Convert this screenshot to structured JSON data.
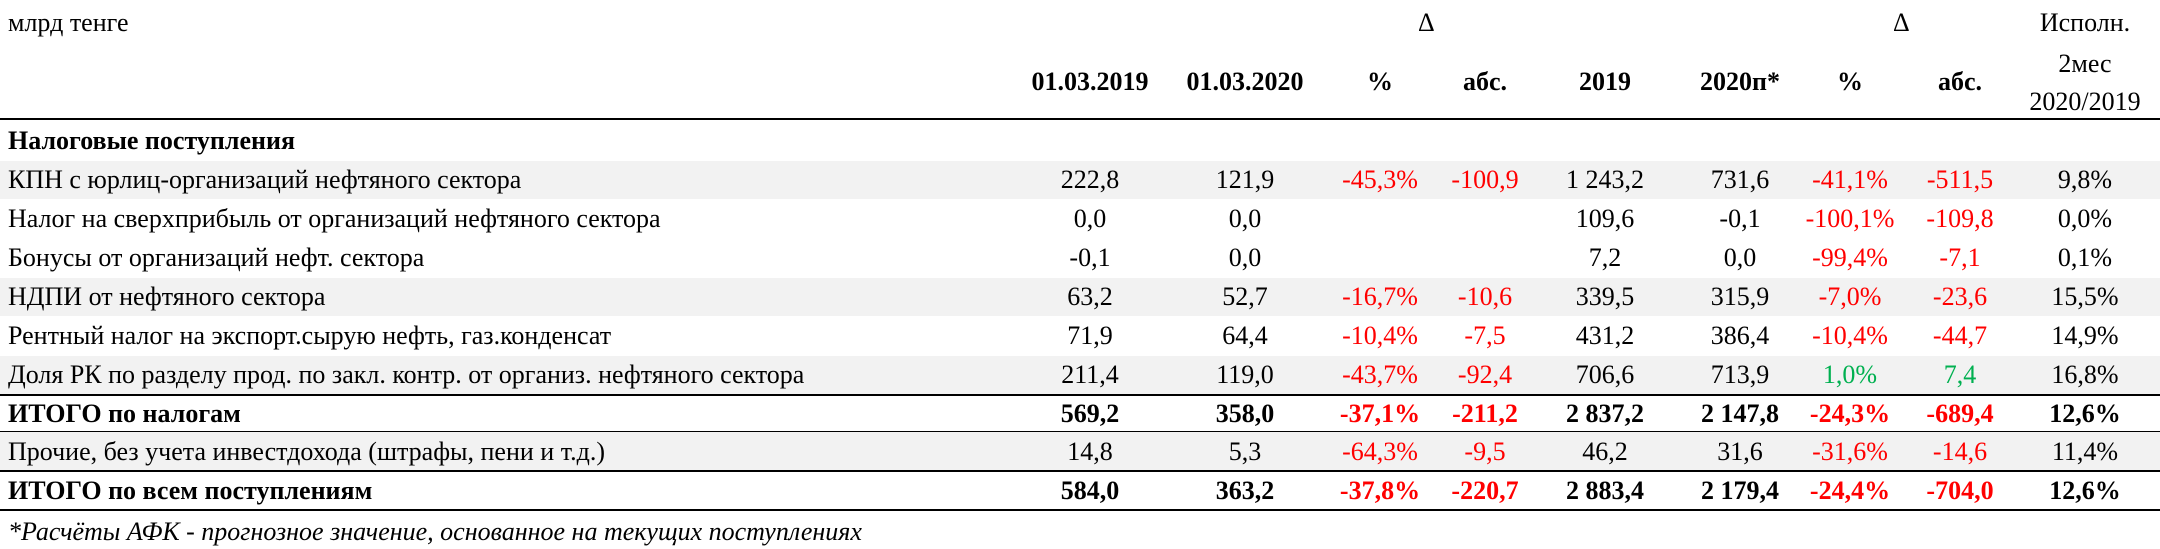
{
  "header": {
    "unit": "млрд тенге",
    "delta_symbol_1": "Δ",
    "delta_symbol_2": "Δ",
    "execution_line1": "Исполн.",
    "execution_line2": "2мес",
    "execution_line3": "2020/2019",
    "columns": [
      "01.03.2019",
      "01.03.2020",
      "%",
      "абс.",
      "2019",
      "2020п*",
      "%",
      "абс."
    ]
  },
  "section_title": "Налоговые поступления",
  "colors": {
    "negative": "#ff0000",
    "positive": "#00b050",
    "shade": "#f2f2f2"
  },
  "rows": [
    {
      "label": "КПН с юрлиц-организаций нефтяного сектора",
      "values": [
        "222,8",
        "121,9",
        "-45,3%",
        "-100,9",
        "1 243,2",
        "731,6",
        "-41,1%",
        "-511,5",
        "9,8%"
      ]
    },
    {
      "label": "Налог на сверхприбыль от организаций нефтяного сектора",
      "values": [
        "0,0",
        "0,0",
        "",
        "",
        "109,6",
        "-0,1",
        "-100,1%",
        "-109,8",
        "0,0%"
      ]
    },
    {
      "label": "Бонусы от организаций нефт. сектора",
      "values": [
        "-0,1",
        "0,0",
        "",
        "",
        "7,2",
        "0,0",
        "-99,4%",
        "-7,1",
        "0,1%"
      ]
    },
    {
      "label": "НДПИ от нефтяного сектора",
      "values": [
        "63,2",
        "52,7",
        "-16,7%",
        "-10,6",
        "339,5",
        "315,9",
        "-7,0%",
        "-23,6",
        "15,5%"
      ]
    },
    {
      "label": "Рентный налог на экспорт.сырую нефть, газ.конденсат",
      "values": [
        "71,9",
        "64,4",
        "-10,4%",
        "-7,5",
        "431,2",
        "386,4",
        "-10,4%",
        "-44,7",
        "14,9%"
      ]
    },
    {
      "label": "Доля РК по разделу прод. по закл. контр. от организ. нефтяного сектора",
      "values": [
        "211,4",
        "119,0",
        "-43,7%",
        "-92,4",
        "706,6",
        "713,9",
        "1,0%",
        "7,4",
        "16,8%"
      ]
    }
  ],
  "total_taxes": {
    "label": "ИТОГО по налогам",
    "values": [
      "569,2",
      "358,0",
      "-37,1%",
      "-211,2",
      "2 837,2",
      "2 147,8",
      "-24,3%",
      "-689,4",
      "12,6%"
    ]
  },
  "other": {
    "label": "Прочие, без учета инвестдохода (штрафы, пени и т.д.)",
    "values": [
      "14,8",
      "5,3",
      "-64,3%",
      "-9,5",
      "46,2",
      "31,6",
      "-31,6%",
      "-14,6",
      "11,4%"
    ]
  },
  "total_all": {
    "label": "ИТОГО по всем поступлениям",
    "values": [
      "584,0",
      "363,2",
      "-37,8%",
      "-220,7",
      "2 883,4",
      "2 179,4",
      "-24,4%",
      "-704,0",
      "12,6%"
    ]
  },
  "footnote": "*Расчёты АФК - прогнозное значение, основанное на текущих поступлениях"
}
